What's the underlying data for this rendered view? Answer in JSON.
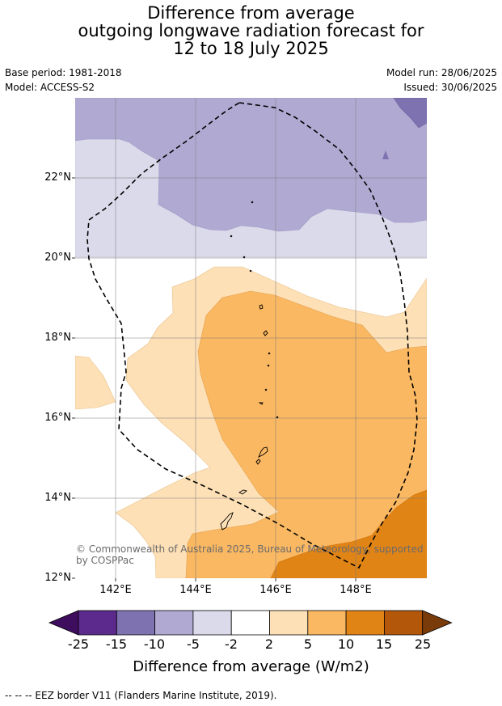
{
  "title": {
    "line1": "Difference from average",
    "line2": "outgoing longwave radiation forecast for",
    "line3": "12 to 18 July 2025"
  },
  "info": {
    "base_period": "Base period: 1981-2018",
    "model": "Model: ACCESS-S2",
    "model_run": "Model run: 28/06/2025",
    "issued": "Issued: 30/06/2025"
  },
  "map": {
    "lat_labels": [
      "22°N",
      "20°N",
      "18°N",
      "16°N",
      "14°N",
      "12°N"
    ],
    "lon_labels": [
      "142°E",
      "144°E",
      "146°E",
      "148°E"
    ],
    "copyright": "© Commonwealth of Australia 2025, Bureau of Meteorology, supported by COSPPac",
    "category_colors": {
      "-25": "#3f0d5e",
      "-15": "#5b2a8c",
      "-10": "#7f72b0",
      "-5": "#b0aad3",
      "-2": "#dadaeb",
      "0": "#ffffff",
      "2": "#fde0b6",
      "5": "#fbb862",
      "10": "#e18416",
      "15": "#b3580a",
      "25": "#7a3b0b"
    }
  },
  "colorbar": {
    "ticks": [
      "-25",
      "-15",
      "-10",
      "-5",
      "-2",
      "2",
      "5",
      "10",
      "15",
      "25"
    ],
    "colors": [
      "#5b2a8c",
      "#7f72b0",
      "#b0aad3",
      "#dadaeb",
      "#ffffff",
      "#fde0b6",
      "#fbb862",
      "#e18416",
      "#b3580a"
    ],
    "under_color": "#3f0d5e",
    "over_color": "#7a3b0b",
    "title": "Difference from average (W/m2)"
  },
  "footer": "--  --  -- EEZ border V11 (Flanders Marine Institute, 2019)."
}
